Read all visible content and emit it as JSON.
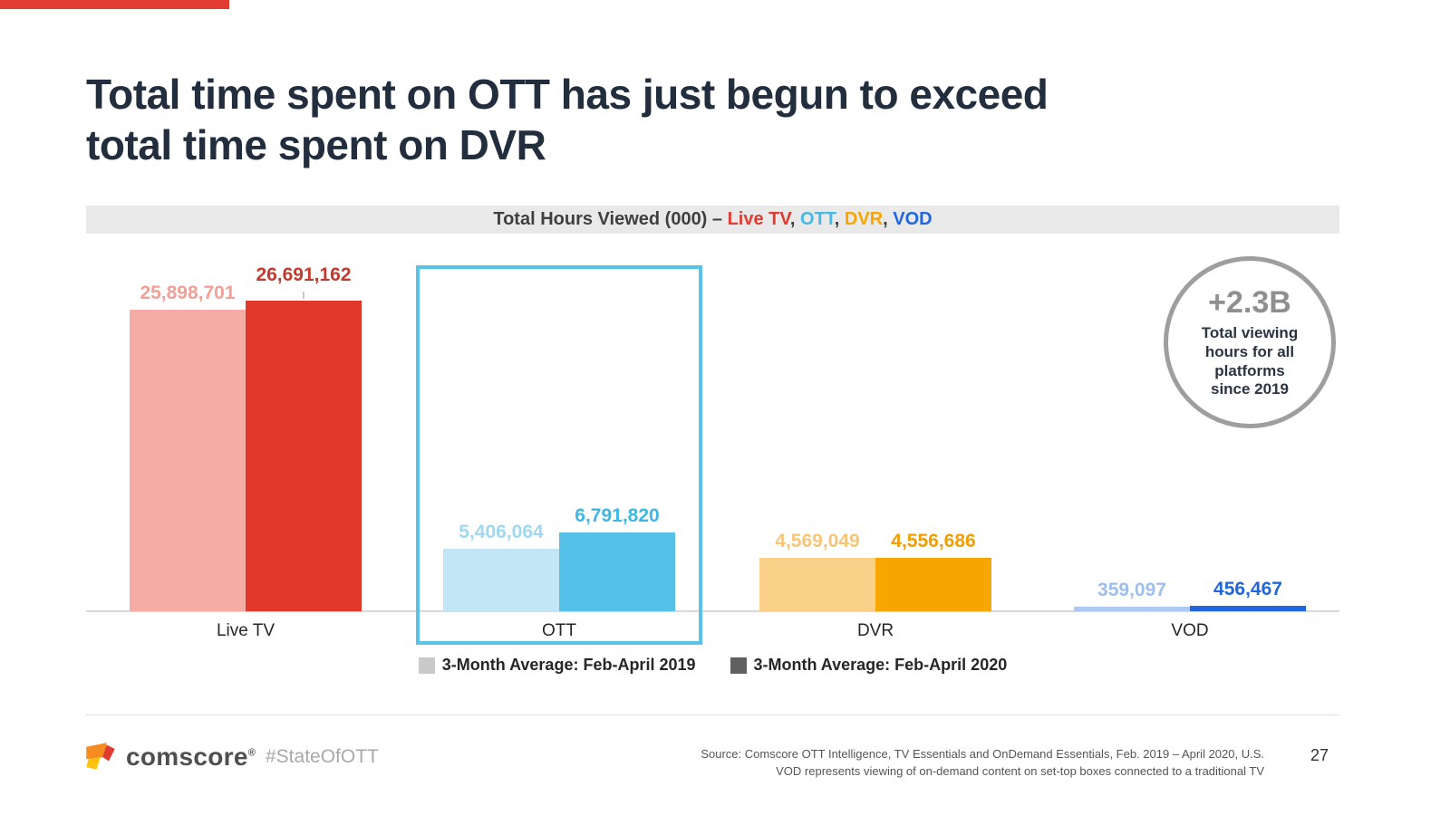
{
  "slide": {
    "title": [
      "Total time spent on OTT has just begun to exceed",
      "total time spent on DVR"
    ],
    "page_number": "27",
    "hashtag": "#StateOfOTT",
    "brand": "comscore",
    "brand_mark": "®",
    "accent_color": "#E03C31",
    "source_lines": [
      "Source: Comscore OTT Intelligence, TV Essentials and OnDemand Essentials, Feb. 2019 – April 2020, U.S.",
      "VOD represents viewing of on-demand content on set-top boxes connected to a traditional TV"
    ]
  },
  "chart_header": {
    "prefix": "Total Hours Viewed (000) – ",
    "separator": ", ",
    "segments": [
      {
        "label": "Live TV",
        "color": "#E03C31"
      },
      {
        "label": "OTT",
        "color": "#45B8E6"
      },
      {
        "label": "DVR",
        "color": "#F7A600"
      },
      {
        "label": "VOD",
        "color": "#2166DE"
      }
    ]
  },
  "badge": {
    "value": "+2.3B",
    "lines": [
      "Total viewing",
      "hours for all",
      "platforms",
      "since 2019"
    ],
    "ring_color": "#9E9E9E"
  },
  "legend": {
    "items": [
      {
        "label": "3-Month Average: Feb-April 2019",
        "swatch": "#C9C9C9"
      },
      {
        "label": "3-Month Average: Feb-April 2020",
        "swatch": "#606060"
      }
    ]
  },
  "chart_data": {
    "type": "bar",
    "title": "Total Hours Viewed (000) – Live TV, OTT, DVR, VOD",
    "units": "(000) hours",
    "categories": [
      "Live TV",
      "OTT",
      "DVR",
      "VOD"
    ],
    "series": [
      {
        "name": "3-Month Average: Feb-April 2019",
        "values": [
          25898701,
          5406064,
          4569049,
          359097
        ],
        "labels": [
          "25,898,701",
          "5,406,064",
          "4,569,049",
          "359,097"
        ]
      },
      {
        "name": "3-Month Average: Feb-April 2020",
        "values": [
          26691162,
          6791820,
          4556686,
          456467
        ],
        "labels": [
          "26,691,162",
          "6,791,820",
          "4,556,686",
          "456,467"
        ]
      }
    ],
    "ylim": [
      0,
      27000000
    ],
    "grid": false,
    "legend_position": "bottom",
    "highlight_category": "OTT",
    "highlight_color": "#5BC2E7",
    "bar_colors": [
      [
        "#F5ACA4",
        "#C3E6F6",
        "#FBD189",
        "#ADC9F1"
      ],
      [
        "#E2382C",
        "#56C1E8",
        "#F7A600",
        "#2166DE"
      ]
    ],
    "label_colors": [
      [
        "#F0A096",
        "#9FD8F0",
        "#F8C476",
        "#9DBFEE"
      ],
      [
        "#C23A2D",
        "#3EB7E5",
        "#F29D00",
        "#2166DE"
      ]
    ]
  }
}
